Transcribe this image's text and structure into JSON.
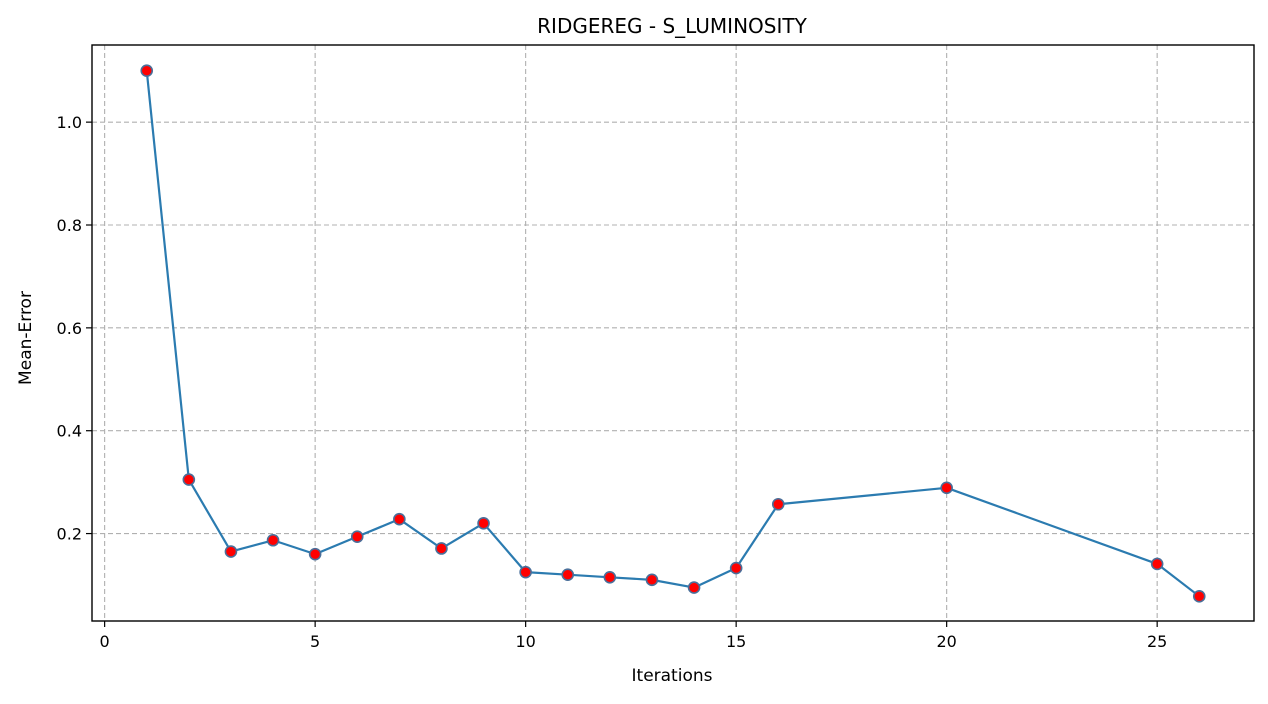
{
  "chart_data": {
    "type": "line",
    "title": "RIDGEREG - S_LUMINOSITY",
    "xlabel": "Iterations",
    "ylabel": "Mean-Error",
    "xlim": [
      -0.3,
      27.3
    ],
    "ylim": [
      0.03,
      1.15
    ],
    "xticks": [
      0,
      5,
      10,
      15,
      20,
      25
    ],
    "yticks": [
      0.2,
      0.4,
      0.6,
      0.8,
      1.0
    ],
    "xtick_labels": [
      "0",
      "5",
      "10",
      "15",
      "20",
      "25"
    ],
    "ytick_labels": [
      "0.2",
      "0.4",
      "0.6",
      "0.8",
      "1.0"
    ],
    "grid": true,
    "grid_style": "dashed",
    "series": [
      {
        "line_color": "#2b7bb0",
        "marker_face_color": "#ff0000",
        "marker_edge_color": "#4a6f9a",
        "x": [
          1,
          2,
          3,
          4,
          5,
          6,
          7,
          8,
          9,
          10,
          11,
          12,
          13,
          14,
          15,
          16,
          20,
          25,
          26
        ],
        "y": [
          1.1,
          0.305,
          0.165,
          0.187,
          0.16,
          0.194,
          0.228,
          0.171,
          0.22,
          0.125,
          0.12,
          0.115,
          0.11,
          0.095,
          0.133,
          0.257,
          0.289,
          0.141,
          0.078
        ]
      }
    ]
  }
}
